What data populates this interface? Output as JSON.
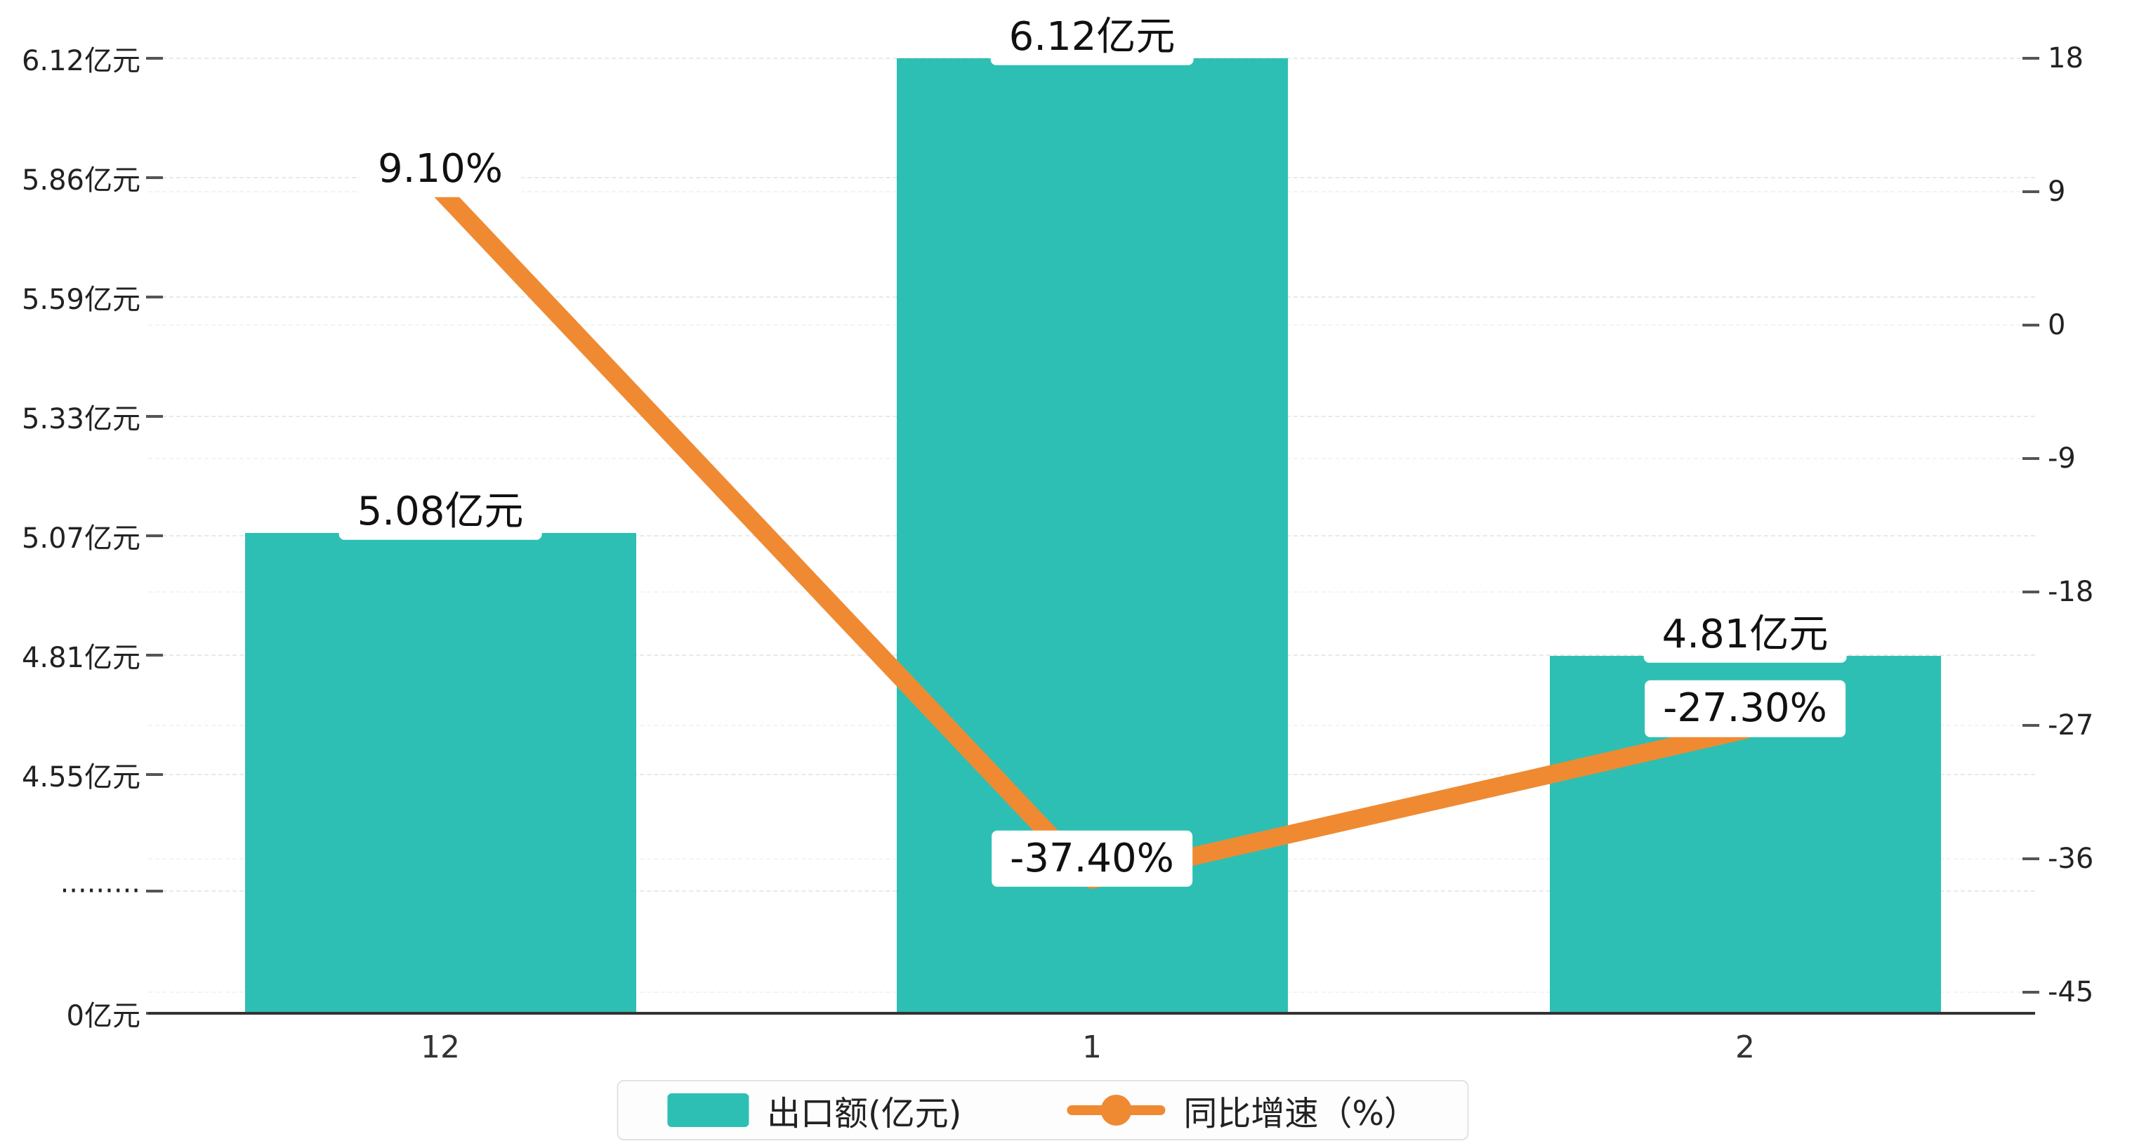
{
  "chart_data": {
    "type": "bar+line",
    "categories": [
      "12",
      "1",
      "2"
    ],
    "series": [
      {
        "name": "出口额(亿元)",
        "type": "bar",
        "color": "#2DBFB3",
        "values": [
          5.08,
          6.12,
          4.81
        ],
        "labels": [
          "5.08亿元",
          "6.12亿元",
          "4.81亿元"
        ]
      },
      {
        "name": "同比增速（%）",
        "type": "line",
        "color": "#EF8A33",
        "values": [
          9.1,
          -37.4,
          -27.3
        ],
        "labels": [
          "9.10%",
          "-37.40%",
          "-27.30%"
        ]
      }
    ],
    "left_axis": {
      "ticks": [
        "6.12亿元",
        "5.86亿元",
        "5.59亿元",
        "5.33亿元",
        "5.07亿元",
        "4.81亿元",
        "4.55亿元",
        "·········",
        "0亿元"
      ],
      "max": 6.12,
      "axis_break": true
    },
    "right_axis": {
      "ticks": [
        "18",
        "9",
        "0",
        "-9",
        "-18",
        "-27",
        "-36",
        "-45"
      ],
      "max": 18,
      "min": -45,
      "step": 9
    },
    "legend": {
      "items": [
        "出口额(亿元)",
        "同比增速（%）"
      ]
    },
    "grid": "dashed-horizontal",
    "background": "#ffffff"
  }
}
